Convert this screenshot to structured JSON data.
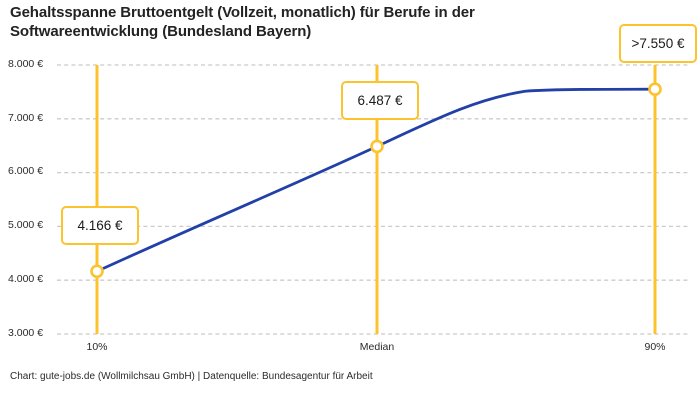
{
  "title": {
    "line1": "Gehaltsspanne Bruttoentgelt (Vollzeit, monatlich) für Berufe in der",
    "line2": "Softwareentwicklung (Bundesland Bayern)"
  },
  "footer": "Chart: gute-jobs.de (Wollmilchsau GmbH) | Datenquelle: Bundesagentur für Arbeit",
  "colors": {
    "accent_yellow": "#FCC32E",
    "line_blue": "#2340A8",
    "grid": "#CBCBCB",
    "text": "#262626"
  },
  "chart_data": {
    "type": "line",
    "title": "Gehaltsspanne Bruttoentgelt (Vollzeit, monatlich) für Berufe in der Softwareentwicklung (Bundesland Bayern)",
    "categories": [
      "10%",
      "Median",
      "90%"
    ],
    "values": [
      4166,
      6487,
      7550
    ],
    "point_labels": [
      "4.166 €",
      "6.487 €",
      ">7.550 €"
    ],
    "ylim": [
      3000,
      8000
    ],
    "yticks": [
      3000,
      4000,
      5000,
      6000,
      7000,
      8000
    ],
    "ytick_labels": [
      "3.000 €",
      "4.000 €",
      "5.000 €",
      "6.000 €",
      "7.000 €",
      "8.000 €"
    ],
    "xlabel": "",
    "ylabel": "",
    "grid": "horizontal-dashed",
    "legend": "none"
  }
}
